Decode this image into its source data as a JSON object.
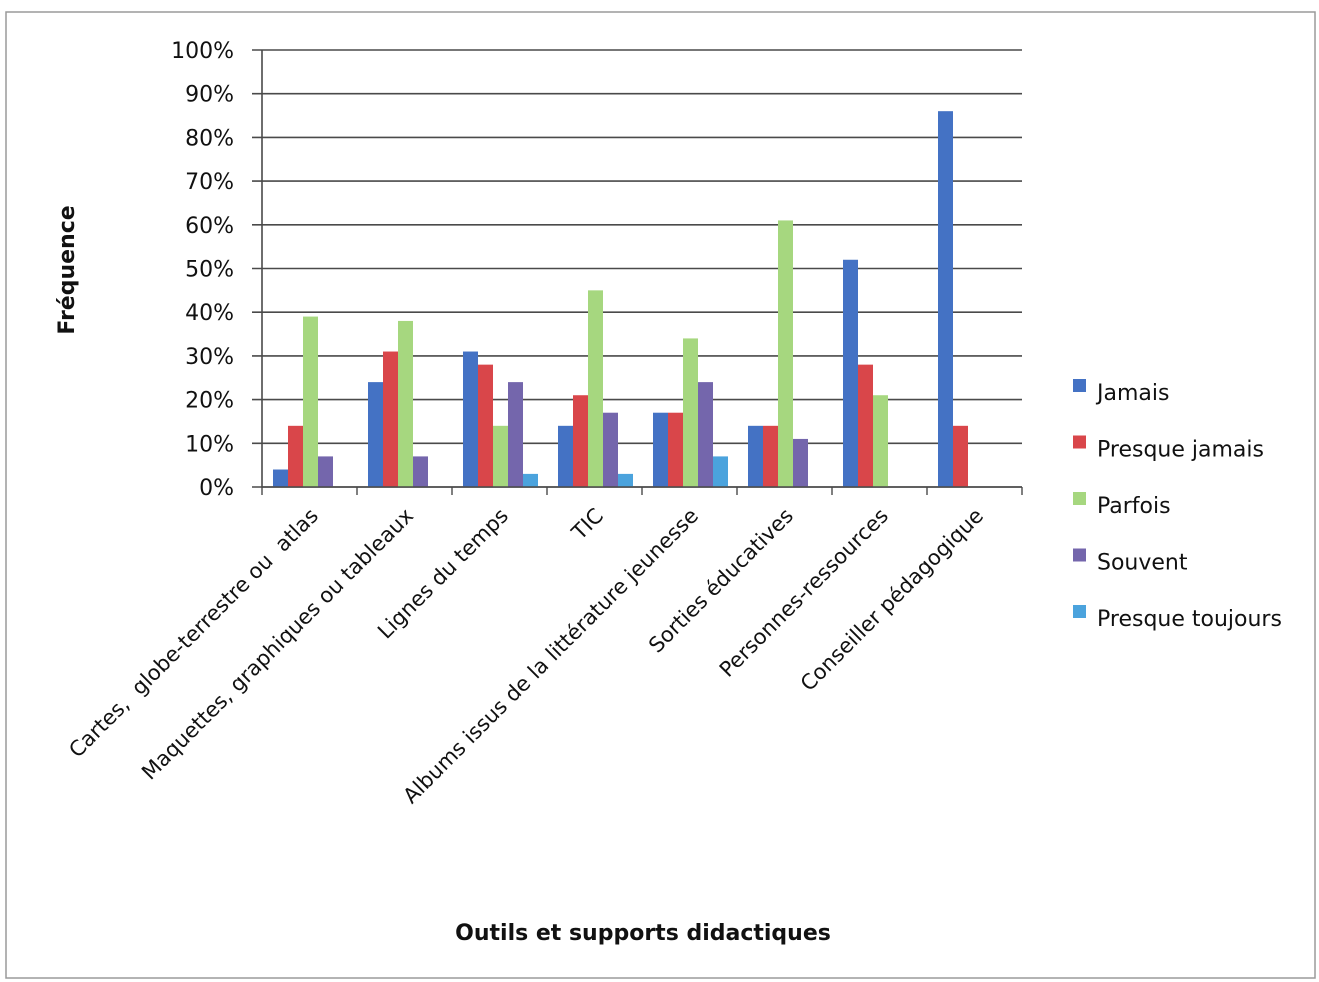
{
  "chart_data": {
    "type": "bar",
    "xlabel": "Outils et supports didactiques",
    "ylabel": "Fréquence",
    "ylim": [
      0,
      100
    ],
    "y_ticks": [
      "0%",
      "10%",
      "20%",
      "30%",
      "40%",
      "50%",
      "60%",
      "70%",
      "80%",
      "90%",
      "100%"
    ],
    "grid": true,
    "legend_position": "right",
    "categories": [
      "Cartes,  globe-terrestre ou  atlas",
      "Maquettes, graphiques ou tableaux",
      "Lignes du temps",
      "TIC",
      "Albums issus de la littérature jeunesse",
      "Sorties éducatives",
      "Personnes-ressources",
      "Conseiller pédagogique"
    ],
    "series": [
      {
        "name": "Jamais",
        "color": "#4472c4",
        "values": [
          4,
          24,
          31,
          14,
          17,
          14,
          52,
          86
        ]
      },
      {
        "name": "Presque jamais",
        "color": "#d9464a",
        "values": [
          14,
          31,
          28,
          21,
          17,
          14,
          28,
          14
        ]
      },
      {
        "name": "Parfois",
        "color": "#a6d77f",
        "values": [
          39,
          38,
          14,
          45,
          34,
          61,
          21,
          0
        ]
      },
      {
        "name": "Souvent",
        "color": "#7466ac",
        "values": [
          7,
          7,
          24,
          17,
          24,
          11,
          0,
          0
        ]
      },
      {
        "name": "Presque toujours",
        "color": "#4ba3dd",
        "values": [
          0,
          0,
          3,
          3,
          7,
          0,
          0,
          0
        ]
      }
    ]
  }
}
